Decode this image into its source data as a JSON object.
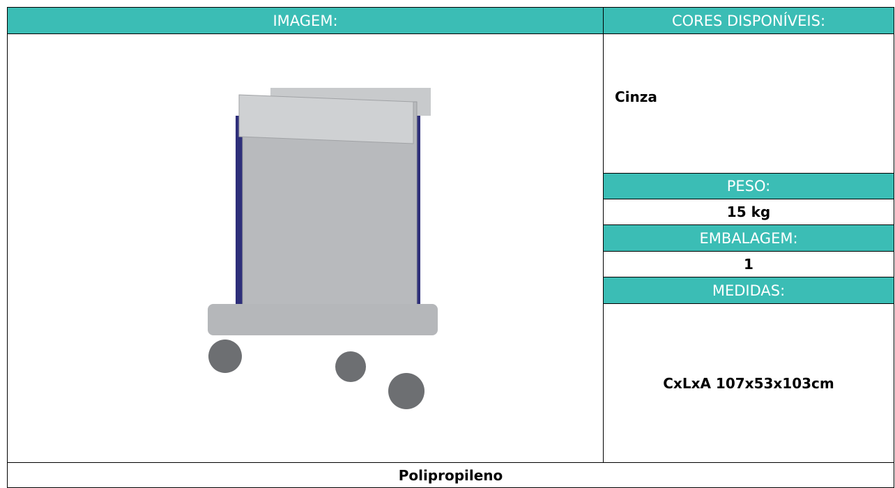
{
  "table": {
    "image_label": "IMAGEM:",
    "colors_label": "CORES DISPONÍVEIS:",
    "colors": "Cinza",
    "weight_label": "PESO:",
    "weight": "15 kg",
    "packaging_label": "EMBALAGEM:",
    "packaging": "1",
    "measures_label": "MEDIDAS:",
    "measures": "CxLxA 107x53x103cm",
    "material": "Polipropileno"
  }
}
